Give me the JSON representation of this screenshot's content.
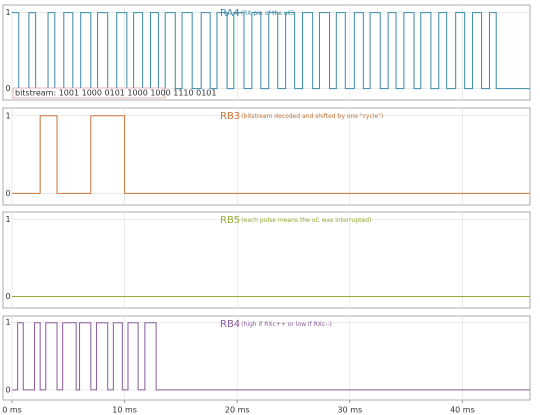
{
  "chart_data": [
    {
      "type": "step",
      "title": "RA4",
      "subtitle": "(RX pin of the uC)",
      "color": "#3a8aa8",
      "x": [
        0,
        0.6,
        1.5,
        2.1,
        3.2,
        3.8,
        4.6,
        5.4,
        6.1,
        7.0,
        7.6,
        8.5,
        9.3,
        10.2,
        10.8,
        11.6,
        12.3,
        13.0,
        13.6,
        14.5,
        15.1,
        16.0,
        16.8,
        17.6,
        18.2,
        19.1,
        19.7,
        20.6,
        21.3,
        22.1,
        22.8,
        23.6,
        24.3,
        25.1,
        25.8,
        26.7,
        27.3,
        28.2,
        28.8,
        29.6,
        30.4,
        31.2,
        31.8,
        32.7,
        33.4,
        34.1,
        34.8,
        35.7,
        36.3,
        37.2,
        37.9,
        38.6,
        39.4,
        40.2,
        40.9,
        41.7,
        42.4,
        43.0,
        46
      ],
      "values": [
        1,
        0,
        1,
        0,
        1,
        0,
        1,
        0,
        1,
        0,
        1,
        0,
        1,
        0,
        1,
        0,
        1,
        0,
        1,
        0,
        1,
        0,
        1,
        0,
        1,
        0,
        1,
        0,
        1,
        0,
        1,
        0,
        1,
        0,
        1,
        0,
        1,
        0,
        1,
        0,
        1,
        0,
        1,
        0,
        1,
        0,
        1,
        0,
        1,
        0,
        1,
        0,
        1,
        0,
        1,
        0,
        1,
        0,
        0
      ],
      "annotation": "bitstream: 1001 1000 0101 1000 1000 1110 0101",
      "xlim": [
        0,
        46
      ],
      "xticks": [
        0,
        10,
        20,
        30,
        40
      ],
      "ylim": [
        -0.15,
        1.1
      ],
      "yticks": [
        0,
        1
      ],
      "grid": true
    },
    {
      "type": "step",
      "title": "RB3",
      "subtitle": "(bitstream decoded and shifted by one \"cycle\")",
      "color": "#c8743a",
      "x": [
        0,
        2.5,
        4.0,
        7.0,
        10.0,
        46
      ],
      "values": [
        0,
        1,
        0,
        1,
        0,
        0
      ],
      "xlim": [
        0,
        46
      ],
      "xticks": [
        0,
        10,
        20,
        30,
        40
      ],
      "ylim": [
        -0.15,
        1.1
      ],
      "yticks": [
        0,
        1
      ],
      "grid": true
    },
    {
      "type": "step",
      "title": "RB5",
      "subtitle": "(each pulse means the uC was interrupted)",
      "color": "#9aaa3a",
      "x": [
        0,
        46
      ],
      "values": [
        0,
        0
      ],
      "xlim": [
        0,
        46
      ],
      "xticks": [
        0,
        10,
        20,
        30,
        40
      ],
      "ylim": [
        -0.15,
        1.1
      ],
      "yticks": [
        0,
        1
      ],
      "grid": true
    },
    {
      "type": "step",
      "title": "RB4",
      "subtitle": "(high if RXc++ or low if RXc--)",
      "color": "#8a5a9a",
      "x": [
        0,
        0.5,
        1.0,
        2.0,
        2.5,
        3.0,
        4.0,
        4.5,
        5.7,
        6.0,
        7.0,
        7.5,
        8.5,
        9.0,
        9.8,
        10.3,
        11.2,
        11.8,
        12.8,
        46
      ],
      "values": [
        0,
        1,
        0,
        1,
        0,
        1,
        0,
        1,
        0,
        1,
        0,
        1,
        0,
        1,
        0,
        1,
        0,
        1,
        0,
        0
      ],
      "xlim": [
        0,
        46
      ],
      "xticks": [
        {
          "value": 0,
          "label": "0 ms"
        },
        {
          "value": 10,
          "label": "10 ms"
        },
        {
          "value": 20,
          "label": "20 ms"
        },
        {
          "value": 30,
          "label": "30 ms"
        },
        {
          "value": 40,
          "label": "40 ms"
        }
      ],
      "ylim": [
        -0.15,
        1.1
      ],
      "yticks": [
        0,
        1
      ],
      "grid": true
    }
  ]
}
